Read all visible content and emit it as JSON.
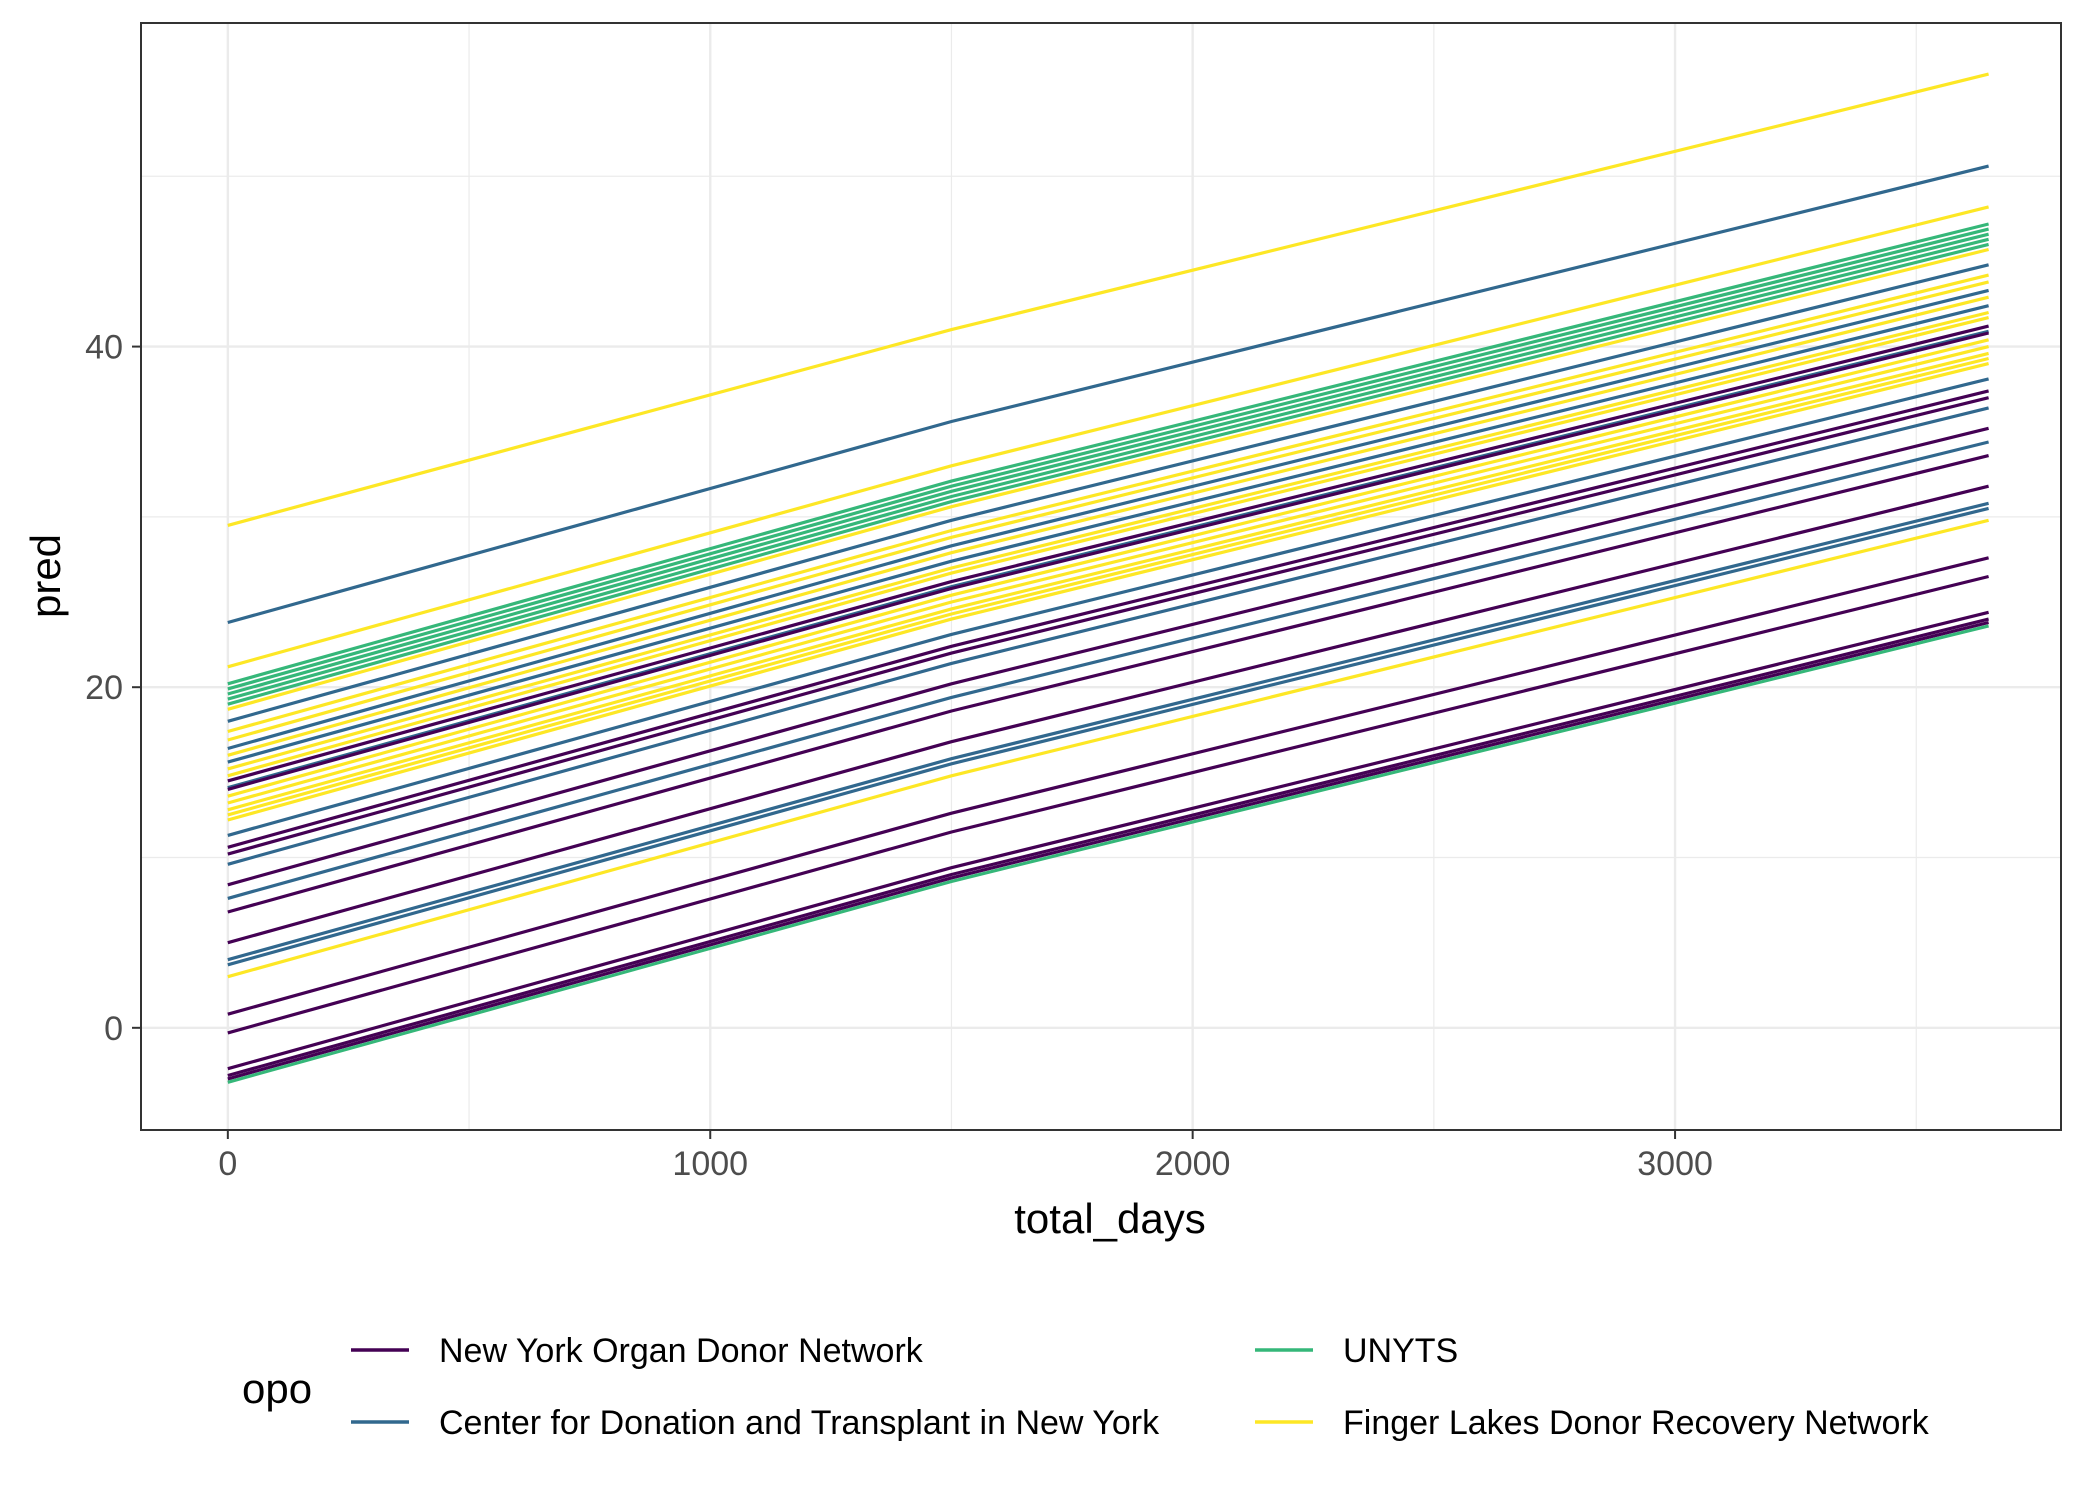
{
  "chart_data": {
    "type": "line",
    "title": "",
    "xlabel": "total_days",
    "ylabel": "pred",
    "xlim": [
      -180,
      3800
    ],
    "ylim": [
      -6,
      59
    ],
    "x_ticks": [
      0,
      1000,
      2000,
      3000
    ],
    "x_tick_labels": [
      "0",
      "1000",
      "2000",
      "3000"
    ],
    "y_ticks": [
      0,
      20,
      40
    ],
    "y_tick_labels": [
      "0",
      "20",
      "40"
    ],
    "x_minor_ticks": [
      500,
      1500,
      2500,
      3500
    ],
    "y_minor_ticks": [
      10,
      30,
      50
    ],
    "grid": true,
    "legend_title": "opo",
    "legend_position": "bottom",
    "groups": [
      {
        "name": "New York Organ Donor Network",
        "color": "#440154"
      },
      {
        "name": "Center for Donation and Transplant in New York",
        "color": "#31688e"
      },
      {
        "name": "UNYTS",
        "color": "#35b779"
      },
      {
        "name": "Finger Lakes Donor Recovery Network",
        "color": "#fde725"
      }
    ],
    "legend_order": [
      0,
      2,
      1,
      3
    ],
    "line_x": [
      0,
      1500,
      3650
    ],
    "lines": [
      {
        "group": 3,
        "y": [
          29.5,
          41.0,
          56.0
        ]
      },
      {
        "group": 1,
        "y": [
          23.8,
          35.6,
          50.6
        ]
      },
      {
        "group": 3,
        "y": [
          21.2,
          33.0,
          48.2
        ]
      },
      {
        "group": 2,
        "y": [
          20.2,
          32.1,
          47.2
        ]
      },
      {
        "group": 2,
        "y": [
          19.9,
          31.8,
          46.9
        ]
      },
      {
        "group": 2,
        "y": [
          19.6,
          31.5,
          46.6
        ]
      },
      {
        "group": 2,
        "y": [
          19.3,
          31.2,
          46.3
        ]
      },
      {
        "group": 2,
        "y": [
          19.0,
          30.9,
          46.0
        ]
      },
      {
        "group": 3,
        "y": [
          18.7,
          30.6,
          45.7
        ]
      },
      {
        "group": 1,
        "y": [
          18.0,
          29.8,
          44.8
        ]
      },
      {
        "group": 3,
        "y": [
          17.4,
          29.2,
          44.2
        ]
      },
      {
        "group": 3,
        "y": [
          16.9,
          28.8,
          43.8
        ]
      },
      {
        "group": 1,
        "y": [
          16.4,
          28.3,
          43.3
        ]
      },
      {
        "group": 3,
        "y": [
          16.0,
          27.9,
          42.9
        ]
      },
      {
        "group": 1,
        "y": [
          15.6,
          27.4,
          42.4
        ]
      },
      {
        "group": 3,
        "y": [
          15.2,
          27.0,
          42.0
        ]
      },
      {
        "group": 3,
        "y": [
          14.8,
          26.7,
          41.7
        ]
      },
      {
        "group": 0,
        "y": [
          14.5,
          26.2,
          41.2
        ]
      },
      {
        "group": 1,
        "y": [
          14.1,
          25.9,
          40.9
        ]
      },
      {
        "group": 0,
        "y": [
          14.0,
          25.8,
          40.8
        ]
      },
      {
        "group": 3,
        "y": [
          13.6,
          25.4,
          40.4
        ]
      },
      {
        "group": 3,
        "y": [
          13.2,
          25.0,
          40.0
        ]
      },
      {
        "group": 3,
        "y": [
          12.8,
          24.6,
          39.6
        ]
      },
      {
        "group": 3,
        "y": [
          12.5,
          24.3,
          39.3
        ]
      },
      {
        "group": 3,
        "y": [
          12.2,
          24.0,
          39.0
        ]
      },
      {
        "group": 1,
        "y": [
          11.3,
          23.1,
          38.1
        ]
      },
      {
        "group": 0,
        "y": [
          10.6,
          22.4,
          37.4
        ]
      },
      {
        "group": 0,
        "y": [
          10.2,
          22.0,
          37.0
        ]
      },
      {
        "group": 1,
        "y": [
          9.6,
          21.4,
          36.4
        ]
      },
      {
        "group": 0,
        "y": [
          8.4,
          20.2,
          35.2
        ]
      },
      {
        "group": 1,
        "y": [
          7.6,
          19.4,
          34.4
        ]
      },
      {
        "group": 0,
        "y": [
          6.8,
          18.6,
          33.6
        ]
      },
      {
        "group": 0,
        "y": [
          5.0,
          16.8,
          31.8
        ]
      },
      {
        "group": 1,
        "y": [
          4.0,
          15.8,
          30.8
        ]
      },
      {
        "group": 1,
        "y": [
          3.7,
          15.5,
          30.5
        ]
      },
      {
        "group": 3,
        "y": [
          3.0,
          14.8,
          29.8
        ]
      },
      {
        "group": 0,
        "y": [
          0.8,
          12.6,
          27.6
        ]
      },
      {
        "group": 0,
        "y": [
          -0.3,
          11.5,
          26.5
        ]
      },
      {
        "group": 0,
        "y": [
          -2.4,
          9.4,
          24.4
        ]
      },
      {
        "group": 0,
        "y": [
          -2.8,
          9.0,
          24.0
        ]
      },
      {
        "group": 0,
        "y": [
          -3.0,
          8.8,
          23.8
        ]
      },
      {
        "group": 2,
        "y": [
          -3.2,
          8.6,
          23.6
        ]
      }
    ]
  }
}
